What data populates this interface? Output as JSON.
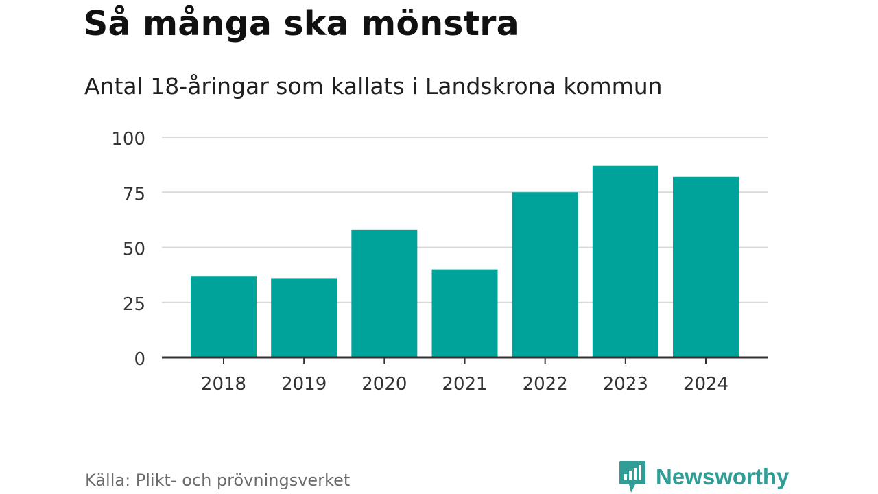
{
  "title": "Så många ska mönstra",
  "subtitle": "Antal 18-åringar som kallats i Landskrona kommun",
  "source": "Källa: Plikt- och prövningsverket",
  "brand": {
    "name": "Newsworthy",
    "icon": "newsworthy-logo-icon",
    "color": "#2f9e96"
  },
  "colors": {
    "bar": "#00a39a",
    "grid": "#d9d9d9",
    "axis": "#333333",
    "tick_text": "#333333"
  },
  "chart_data": {
    "type": "bar",
    "title": "Så många ska mönstra",
    "subtitle": "Antal 18-åringar som kallats i Landskrona kommun",
    "categories": [
      "2018",
      "2019",
      "2020",
      "2021",
      "2022",
      "2023",
      "2024"
    ],
    "values": [
      37,
      36,
      58,
      40,
      75,
      87,
      82
    ],
    "ylim": [
      0,
      100
    ],
    "yticks": [
      "0",
      "25",
      "50",
      "75",
      "100"
    ],
    "ytick_values": [
      0,
      25,
      50,
      75,
      100
    ],
    "grid": true,
    "legend": "none"
  }
}
